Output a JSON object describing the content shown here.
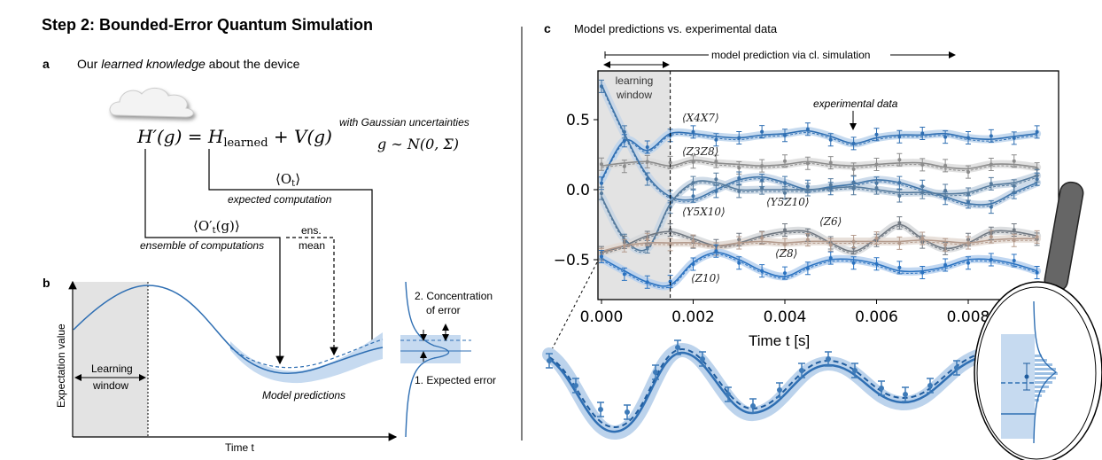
{
  "title": "Step 2: Bounded-Error Quantum Simulation",
  "panel_a": {
    "letter": "a",
    "caption_pre": "Our ",
    "caption_em": "learned knowledge",
    "caption_post": " about the device",
    "equation": {
      "lhs": "H′(g)",
      "eq": " = ",
      "h": "H",
      "h_sub": "learned",
      "rest": " + V(g)"
    },
    "uncertainty_label": "with Gaussian uncertainties",
    "uncertainty_eq": "g ∼ N(0, Σ)",
    "expected_obs": "⟨O",
    "expected_obs_sub": "t",
    "expected_obs_close": "⟩",
    "expected_label": "expected computation",
    "ensemble_obs": "⟨O′",
    "ensemble_obs_sub": "t",
    "ensemble_obs_close": "(g)⟩",
    "ensemble_label": "ensemble of computations",
    "ens_mean_1": "ens.",
    "ens_mean_2": "mean"
  },
  "panel_b": {
    "letter": "b",
    "ylabel": "Expectation value",
    "xlabel": "Time t",
    "learning_window_1": "Learning",
    "learning_window_2": "window",
    "model_predictions": "Model predictions",
    "concentration_1": "2. Concentration",
    "concentration_2": "of error",
    "expected_error": "1. Expected error"
  },
  "panel_c": {
    "letter": "c",
    "title": "Model predictions vs. experimental data",
    "model_prediction_arrow": "model prediction via cl. simulation",
    "learning_window_1": "learning",
    "learning_window_2": "window",
    "experimental_data": "experimental data"
  },
  "chart_data": {
    "type": "line",
    "xlabel": "Time t [s]",
    "xlim": [
      0,
      0.0097
    ],
    "ylim": [
      -0.78,
      0.8
    ],
    "xticks": [
      "0.000",
      "0.002",
      "0.004",
      "0.006",
      "0.008"
    ],
    "xtick_values": [
      0,
      0.002,
      0.004,
      0.006,
      0.008
    ],
    "yticks": [
      "0.5",
      "0.0",
      "−0.5"
    ],
    "ytick_values": [
      0.5,
      0.0,
      -0.5
    ],
    "learning_window_end": 0.0015,
    "grid": false,
    "t": [
      0,
      0.0005,
      0.001,
      0.0015,
      0.002,
      0.0025,
      0.003,
      0.0035,
      0.004,
      0.0045,
      0.005,
      0.0055,
      0.006,
      0.0065,
      0.007,
      0.0075,
      0.008,
      0.0085,
      0.009,
      0.0095
    ],
    "series": [
      {
        "name": "⟨X4X7⟩",
        "color": "#2f6fb3",
        "band": "#bcd3ec",
        "values": [
          0.07,
          0.35,
          0.28,
          0.4,
          0.4,
          0.38,
          0.37,
          0.39,
          0.4,
          0.42,
          0.38,
          0.33,
          0.37,
          0.39,
          0.39,
          0.4,
          0.37,
          0.36,
          0.38,
          0.4
        ]
      },
      {
        "name": "⟨Z3Z8⟩",
        "color": "#8c8c8c",
        "band": "#dcdcdc",
        "values": [
          0.17,
          0.19,
          0.2,
          0.17,
          0.21,
          0.19,
          0.18,
          0.17,
          0.18,
          0.2,
          0.18,
          0.17,
          0.18,
          0.19,
          0.19,
          0.16,
          0.15,
          0.18,
          0.18,
          0.16
        ]
      },
      {
        "name": "⟨Y5X10⟩",
        "color": "#3f74a8",
        "band": "#c4d5e8",
        "values": [
          0.75,
          0.4,
          0.1,
          -0.05,
          -0.07,
          0.0,
          0.07,
          0.09,
          0.05,
          0.0,
          0.02,
          0.04,
          0.07,
          0.05,
          0.0,
          -0.05,
          -0.1,
          -0.1,
          -0.02,
          0.05
        ]
      },
      {
        "name": "⟨Y5Z10⟩",
        "color": "#557a9c",
        "band": "#c8d6e4",
        "values": [
          -0.05,
          -0.35,
          -0.42,
          -0.1,
          0.05,
          0.05,
          0.0,
          0.0,
          0.0,
          0.0,
          0.01,
          0.02,
          0.0,
          -0.02,
          -0.02,
          -0.03,
          -0.02,
          0.03,
          0.05,
          0.1
        ]
      },
      {
        "name": "⟨Z6⟩",
        "color": "#6f7780",
        "band": "#d6d8db",
        "values": [
          -0.45,
          -0.4,
          -0.33,
          -0.3,
          -0.35,
          -0.4,
          -0.38,
          -0.33,
          -0.3,
          -0.3,
          -0.38,
          -0.44,
          -0.35,
          -0.25,
          -0.35,
          -0.42,
          -0.38,
          -0.3,
          -0.3,
          -0.33
        ]
      },
      {
        "name": "⟨Z8⟩",
        "color": "#b39a8c",
        "band": "#e4dad4",
        "values": [
          -0.44,
          -0.4,
          -0.38,
          -0.38,
          -0.38,
          -0.4,
          -0.38,
          -0.37,
          -0.38,
          -0.37,
          -0.37,
          -0.37,
          -0.37,
          -0.37,
          -0.36,
          -0.37,
          -0.38,
          -0.36,
          -0.35,
          -0.35
        ]
      },
      {
        "name": "⟨Z10⟩",
        "color": "#2a72c0",
        "band": "#b6d0ee",
        "values": [
          -0.49,
          -0.58,
          -0.66,
          -0.68,
          -0.52,
          -0.45,
          -0.5,
          -0.58,
          -0.62,
          -0.55,
          -0.5,
          -0.5,
          -0.53,
          -0.58,
          -0.58,
          -0.55,
          -0.5,
          -0.5,
          -0.53,
          -0.58
        ]
      }
    ]
  }
}
